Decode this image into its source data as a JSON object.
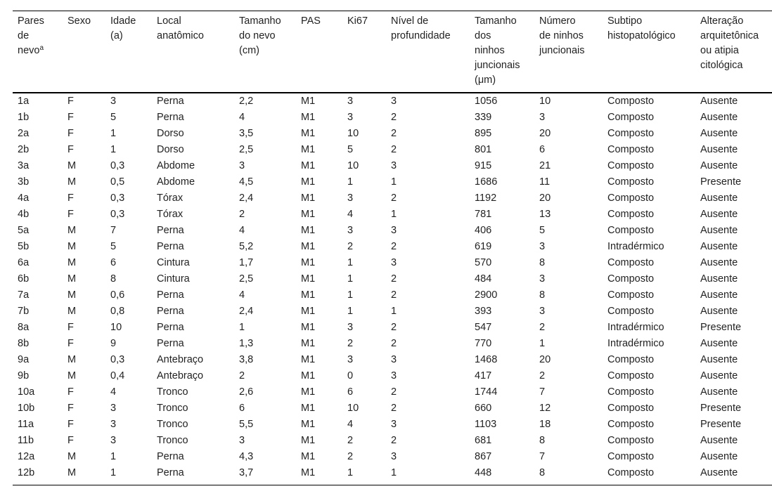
{
  "table": {
    "columns": [
      {
        "lines": [
          "Pares",
          "de",
          "nevo"
        ],
        "sup": "a"
      },
      {
        "lines": [
          "Sexo"
        ]
      },
      {
        "lines": [
          "Idade",
          "(a)"
        ]
      },
      {
        "lines": [
          "Local",
          "anatômico"
        ]
      },
      {
        "lines": [
          "Tamanho",
          "do nevo",
          "(cm)"
        ]
      },
      {
        "lines": [
          "PAS"
        ]
      },
      {
        "lines": [
          "Ki67"
        ]
      },
      {
        "lines": [
          "Nível de",
          "profundidade"
        ]
      },
      {
        "lines": [
          "Tamanho",
          "dos",
          "ninhos",
          "juncionais",
          "(μm)"
        ]
      },
      {
        "lines": [
          "Número",
          "de ninhos",
          "juncionais"
        ]
      },
      {
        "lines": [
          "Subtipo",
          "histopatológico"
        ]
      },
      {
        "lines": [
          "Alteração",
          "arquitetônica",
          "ou atipia",
          "citológica"
        ]
      }
    ],
    "rows": [
      [
        "1a",
        "F",
        "3",
        "Perna",
        "2,2",
        "M1",
        "3",
        "3",
        "1056",
        "10",
        "Composto",
        "Ausente"
      ],
      [
        "1b",
        "F",
        "5",
        "Perna",
        "4",
        "M1",
        "3",
        "2",
        "339",
        "3",
        "Composto",
        "Ausente"
      ],
      [
        "2a",
        "F",
        "1",
        "Dorso",
        "3,5",
        "M1",
        "10",
        "2",
        "895",
        "20",
        "Composto",
        "Ausente"
      ],
      [
        "2b",
        "F",
        "1",
        "Dorso",
        "2,5",
        "M1",
        "5",
        "2",
        "801",
        "6",
        "Composto",
        "Ausente"
      ],
      [
        "3a",
        "M",
        "0,3",
        "Abdome",
        "3",
        "M1",
        "10",
        "3",
        "915",
        "21",
        "Composto",
        "Ausente"
      ],
      [
        "3b",
        "M",
        "0,5",
        "Abdome",
        "4,5",
        "M1",
        "1",
        "1",
        "1686",
        "11",
        "Composto",
        "Presente"
      ],
      [
        "4a",
        "F",
        "0,3",
        "Tórax",
        "2,4",
        "M1",
        "3",
        "2",
        "1192",
        "20",
        "Composto",
        "Ausente"
      ],
      [
        "4b",
        "F",
        "0,3",
        "Tórax",
        "2",
        "M1",
        "4",
        "1",
        "781",
        "13",
        "Composto",
        "Ausente"
      ],
      [
        "5a",
        "M",
        "7",
        "Perna",
        "4",
        "M1",
        "3",
        "3",
        "406",
        "5",
        "Composto",
        "Ausente"
      ],
      [
        "5b",
        "M",
        "5",
        "Perna",
        "5,2",
        "M1",
        "2",
        "2",
        "619",
        "3",
        "Intradérmico",
        "Ausente"
      ],
      [
        "6a",
        "M",
        "6",
        "Cintura",
        "1,7",
        "M1",
        "1",
        "3",
        "570",
        "8",
        "Composto",
        "Ausente"
      ],
      [
        "6b",
        "M",
        "8",
        "Cintura",
        "2,5",
        "M1",
        "1",
        "2",
        "484",
        "3",
        "Composto",
        "Ausente"
      ],
      [
        "7a",
        "M",
        "0,6",
        "Perna",
        "4",
        "M1",
        "1",
        "2",
        "2900",
        "8",
        "Composto",
        "Ausente"
      ],
      [
        "7b",
        "M",
        "0,8",
        "Perna",
        "2,4",
        "M1",
        "1",
        "1",
        "393",
        "3",
        "Composto",
        "Ausente"
      ],
      [
        "8a",
        "F",
        "10",
        "Perna",
        "1",
        "M1",
        "3",
        "2",
        "547",
        "2",
        "Intradérmico",
        "Presente"
      ],
      [
        "8b",
        "F",
        "9",
        "Perna",
        "1,3",
        "M1",
        "2",
        "2",
        "770",
        "1",
        "Intradérmico",
        "Ausente"
      ],
      [
        "9a",
        "M",
        "0,3",
        "Antebraço",
        "3,8",
        "M1",
        "3",
        "3",
        "1468",
        "20",
        "Composto",
        "Ausente"
      ],
      [
        "9b",
        "M",
        "0,4",
        "Antebraço",
        "2",
        "M1",
        "0",
        "3",
        "417",
        "2",
        "Composto",
        "Ausente"
      ],
      [
        "10a",
        "F",
        "4",
        "Tronco",
        "2,6",
        "M1",
        "6",
        "2",
        "1744",
        "7",
        "Composto",
        "Ausente"
      ],
      [
        "10b",
        "F",
        "3",
        "Tronco",
        "6",
        "M1",
        "10",
        "2",
        "660",
        "12",
        "Composto",
        "Presente"
      ],
      [
        "11a",
        "F",
        "3",
        "Tronco",
        "5,5",
        "M1",
        "4",
        "3",
        "1103",
        "18",
        "Composto",
        "Presente"
      ],
      [
        "11b",
        "F",
        "3",
        "Tronco",
        "3",
        "M1",
        "2",
        "2",
        "681",
        "8",
        "Composto",
        "Ausente"
      ],
      [
        "12a",
        "M",
        "1",
        "Perna",
        "4,3",
        "M1",
        "2",
        "3",
        "867",
        "7",
        "Composto",
        "Ausente"
      ],
      [
        "12b",
        "M",
        "1",
        "Perna",
        "3,7",
        "M1",
        "1",
        "1",
        "448",
        "8",
        "Composto",
        "Ausente"
      ]
    ]
  }
}
